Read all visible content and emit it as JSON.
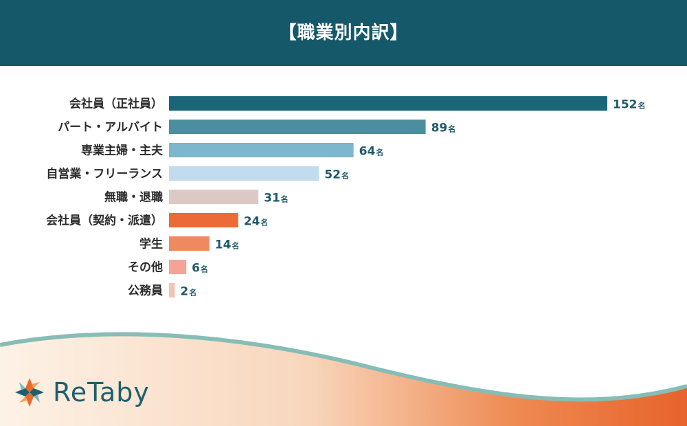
{
  "header": {
    "title": "【職業別内訳】"
  },
  "brand": {
    "name": "ReTaby"
  },
  "colors": {
    "header_bg": "#155869",
    "value_text": "#1f5a6a",
    "wave_teal": "#87bdb6",
    "wave_orange": "#e96a2f"
  },
  "chart_data": {
    "type": "bar",
    "orientation": "horizontal",
    "title": "【職業別内訳】",
    "unit": "名",
    "categories": [
      "会社員（正社員）",
      "パート・アルバイト",
      "専業主婦・主夫",
      "自営業・フリーランス",
      "無職・退職",
      "会社員（契約・派遣）",
      "学生",
      "その他",
      "公務員"
    ],
    "values": [
      152,
      89,
      64,
      52,
      31,
      24,
      14,
      6,
      2
    ],
    "bar_colors": [
      "#1a6578",
      "#4a8ea0",
      "#7db6cd",
      "#c2dcef",
      "#dcc9c6",
      "#ec6a38",
      "#ef8a60",
      "#f2a596",
      "#f5c3b5"
    ],
    "xlim": [
      0,
      152
    ],
    "grid": false,
    "legend": "none"
  }
}
